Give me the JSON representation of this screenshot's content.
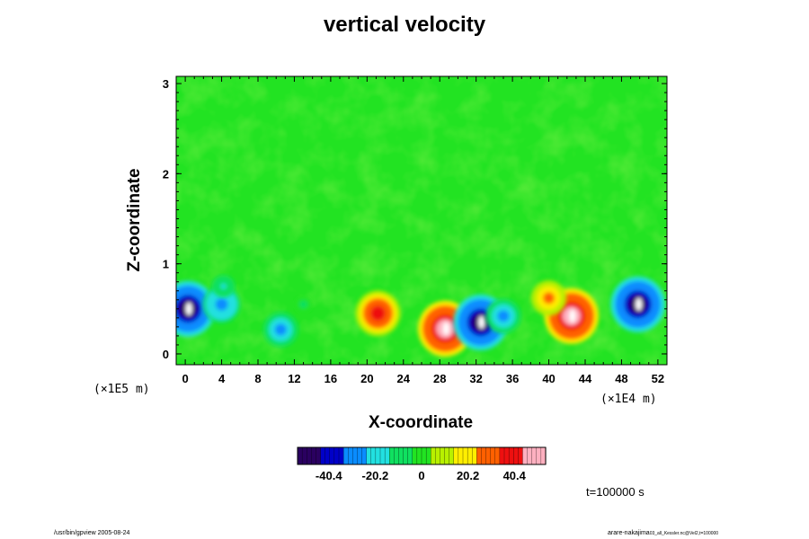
{
  "chart_data": {
    "type": "heatmap",
    "title": "vertical velocity",
    "xlabel": "X-coordinate",
    "ylabel": "Z-coordinate",
    "x_multiplier": "(×1E4 m)",
    "y_multiplier": "(×1E5 m)",
    "xlim": [
      -1,
      53
    ],
    "ylim": [
      -0.12,
      3.08
    ],
    "x_ticks": [
      0,
      4,
      8,
      12,
      16,
      20,
      24,
      28,
      32,
      36,
      40,
      44,
      48,
      52
    ],
    "y_ticks": [
      0,
      1,
      2,
      3
    ],
    "colorbar": {
      "range": [
        -54,
        54
      ],
      "tick_values": [
        -40.4,
        -20.2,
        0,
        20.2,
        40.4
      ],
      "tick_labels": [
        "-40.4",
        "-20.2",
        "0",
        "20.2",
        "40.4"
      ]
    },
    "features": [
      {
        "x": 0.3,
        "z": 0.5,
        "value": -54
      },
      {
        "x": 4.0,
        "z": 0.55,
        "value": -33
      },
      {
        "x": 4.2,
        "z": 0.75,
        "value": -15
      },
      {
        "x": 10.5,
        "z": 0.27,
        "value": -30
      },
      {
        "x": 13.0,
        "z": 0.55,
        "value": -8
      },
      {
        "x": 21.2,
        "z": 0.45,
        "value": 42
      },
      {
        "x": 28.6,
        "z": 0.28,
        "value": 54
      },
      {
        "x": 32.5,
        "z": 0.35,
        "value": -54
      },
      {
        "x": 35.0,
        "z": 0.42,
        "value": -30
      },
      {
        "x": 42.5,
        "z": 0.42,
        "value": 54
      },
      {
        "x": 40.0,
        "z": 0.62,
        "value": 30
      },
      {
        "x": 49.8,
        "z": 0.55,
        "value": -54
      }
    ]
  },
  "annotations": {
    "time": "t=100000 s",
    "footer_left": "/usr/bin/gpview 2005-08-24",
    "footer_right": "arare-nakajima",
    "footer_right_suffix": "03_all_Kessler.nc@Vel2,t=100000"
  },
  "colors": {
    "background_field": "#22e322",
    "colormap": [
      "#2a0060",
      "#0000c8",
      "#0a8cff",
      "#22e0e0",
      "#10e060",
      "#22e322",
      "#b8f000",
      "#ffee00",
      "#ff6000",
      "#ee1010",
      "#ffb0c0"
    ]
  }
}
